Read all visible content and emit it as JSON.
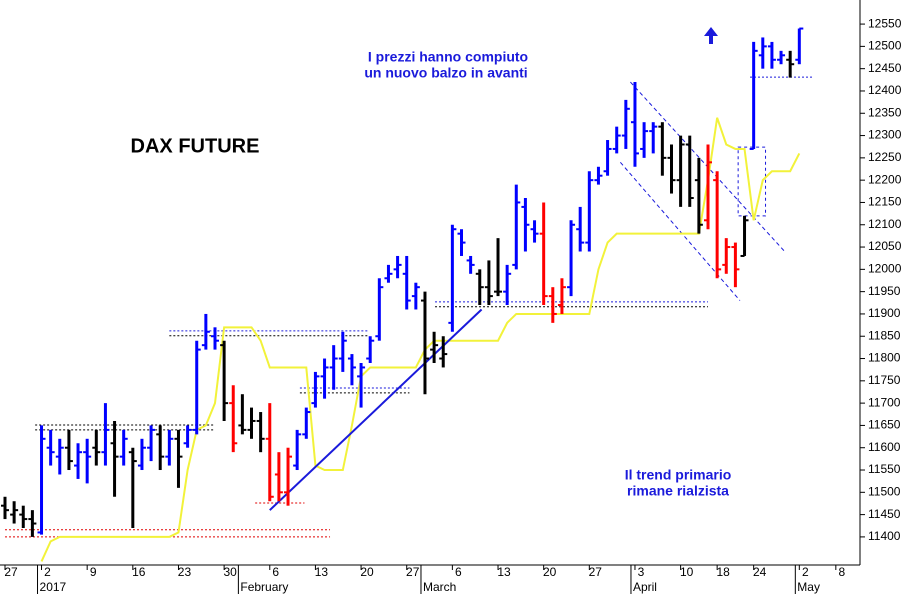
{
  "chart_data": {
    "type": "ohlc",
    "title": "DAX FUTURE",
    "annotations": [
      "I prezzi hanno compiuto",
      "un nuovo balzo in avanti",
      "Il trend primario",
      "rimane rialzista"
    ],
    "categories": [
      "27",
      null,
      null,
      null,
      "2",
      null,
      null,
      null,
      null,
      "9",
      null,
      null,
      null,
      null,
      "16",
      null,
      null,
      null,
      null,
      "23",
      null,
      null,
      null,
      null,
      "30",
      null,
      null,
      null,
      null,
      "6",
      null,
      null,
      null,
      null,
      "13",
      null,
      null,
      null,
      null,
      "20",
      null,
      null,
      null,
      null,
      "27",
      null,
      null,
      null,
      null,
      "6",
      null,
      null,
      null,
      null,
      "13",
      null,
      null,
      null,
      null,
      "20",
      null,
      null,
      null,
      null,
      "27",
      null,
      null,
      null,
      null,
      "3",
      null,
      null,
      null,
      null,
      "10",
      null,
      null,
      null,
      "18",
      null,
      null,
      null,
      "24",
      null,
      null,
      null,
      null,
      "2",
      null,
      null,
      null,
      "8"
    ],
    "months": [
      {
        "label": "2017",
        "at": 4
      },
      {
        "label": "February",
        "at": 26
      },
      {
        "label": "March",
        "at": 46
      },
      {
        "label": "April",
        "at": 69
      },
      {
        "label": "May",
        "at": 87
      }
    ],
    "open": [
      11470,
      11450,
      11450,
      11440,
      11410,
      11600,
      11580,
      11600,
      11560,
      11590,
      11600,
      11590,
      11610,
      11580,
      11590,
      11560,
      11600,
      11630,
      11580,
      11620,
      11610,
      11640,
      11830,
      11850,
      11830,
      11700,
      11650,
      11640,
      11660,
      11620,
      11540,
      11500,
      11560,
      11630,
      11700,
      11760,
      11780,
      11800,
      11800,
      11760,
      11800,
      11850,
      11980,
      12000,
      11990,
      11940,
      11930,
      11820,
      11800,
      11880,
      12080,
      12020,
      11990,
      11960,
      11950,
      11950,
      12010,
      12140,
      12090,
      12080,
      11940,
      11920,
      11960,
      12090,
      12060,
      12200,
      12220,
      12270,
      12300,
      12330,
      12270,
      12310,
      12320,
      12250,
      12200,
      12280,
      12200,
      12110,
      12200,
      12010,
      12050,
      12030,
      12270,
      12480,
      12500,
      12470,
      12470,
      12470,
      null,
      null,
      null,
      null
    ],
    "high": [
      11490,
      11480,
      11470,
      11460,
      11650,
      11640,
      11620,
      11640,
      11610,
      11620,
      11640,
      11700,
      11660,
      11640,
      11600,
      11620,
      11650,
      11650,
      11640,
      11640,
      11650,
      11840,
      11900,
      11870,
      11840,
      11740,
      11720,
      11690,
      11680,
      11700,
      11590,
      11600,
      11640,
      11690,
      11770,
      11800,
      11830,
      11860,
      11810,
      11790,
      11850,
      11980,
      12010,
      12030,
      12030,
      11970,
      11950,
      11860,
      11850,
      12100,
      12090,
      12030,
      12000,
      12020,
      12070,
      12010,
      12190,
      12160,
      12110,
      12150,
      11960,
      11980,
      12110,
      12140,
      12220,
      12230,
      12290,
      12320,
      12380,
      12420,
      12330,
      12330,
      12330,
      12280,
      12300,
      12300,
      12250,
      12280,
      12220,
      12070,
      12060,
      12120,
      12510,
      12520,
      12510,
      12490,
      12490,
      12540,
      null,
      null,
      null,
      null
    ],
    "low": [
      11440,
      11430,
      11420,
      11400,
      11405,
      11560,
      11540,
      11550,
      11530,
      11520,
      11560,
      11560,
      11490,
      11560,
      11420,
      11550,
      11570,
      11550,
      11560,
      11510,
      11600,
      11630,
      11820,
      11820,
      11660,
      11590,
      11630,
      11620,
      11590,
      11480,
      11480,
      11470,
      11550,
      11620,
      11690,
      11710,
      11730,
      11770,
      11740,
      11690,
      11790,
      11840,
      11970,
      11980,
      11910,
      11910,
      11720,
      11790,
      11780,
      11860,
      12030,
      11990,
      11920,
      11920,
      11940,
      11920,
      12000,
      12040,
      12060,
      11920,
      11880,
      11900,
      11940,
      12040,
      12040,
      12190,
      12210,
      12260,
      12270,
      12230,
      12250,
      12260,
      12210,
      12170,
      12140,
      12140,
      12080,
      12090,
      11980,
      11990,
      11960,
      12030,
      12270,
      12450,
      12450,
      12460,
      12430,
      12460,
      null,
      null,
      null,
      null
    ],
    "close": [
      11460,
      11460,
      11440,
      11430,
      11620,
      11590,
      11600,
      11570,
      11590,
      11580,
      11590,
      11640,
      11580,
      11620,
      11570,
      11600,
      11640,
      11580,
      11620,
      11580,
      11640,
      11820,
      11860,
      11840,
      11700,
      11610,
      11640,
      11660,
      11620,
      11490,
      11500,
      11580,
      11630,
      11680,
      11760,
      11780,
      11800,
      11840,
      11780,
      11780,
      11840,
      11960,
      11990,
      12010,
      11930,
      11960,
      11800,
      11830,
      11810,
      12090,
      12060,
      12010,
      11960,
      11940,
      11950,
      11990,
      12150,
      12100,
      12080,
      11940,
      11900,
      11960,
      12100,
      12060,
      12200,
      12210,
      12270,
      12300,
      12360,
      12260,
      12310,
      12320,
      12250,
      12200,
      12280,
      12160,
      12100,
      12240,
      12000,
      12050,
      12000,
      12110,
      12490,
      12500,
      12470,
      12480,
      12460,
      12540,
      null,
      null,
      null,
      null
    ],
    "colors": [
      "black",
      "black",
      "black",
      "black",
      "blue",
      "blue",
      "blue",
      "black",
      "blue",
      "blue",
      "black",
      "blue",
      "black",
      "blue",
      "black",
      "blue",
      "blue",
      "black",
      "blue",
      "black",
      "blue",
      "blue",
      "blue",
      "blue",
      "black",
      "red",
      "black",
      "black",
      "black",
      "red",
      "red",
      "red",
      "blue",
      "blue",
      "blue",
      "blue",
      "blue",
      "blue",
      "blue",
      "blue",
      "blue",
      "blue",
      "blue",
      "blue",
      "blue",
      "blue",
      "black",
      "black",
      "black",
      "blue",
      "blue",
      "blue",
      "black",
      "black",
      "black",
      "blue",
      "blue",
      "blue",
      "blue",
      "red",
      "red",
      "red",
      "blue",
      "blue",
      "blue",
      "blue",
      "blue",
      "blue",
      "blue",
      "blue",
      "blue",
      "blue",
      "black",
      "black",
      "black",
      "black",
      "black",
      "red",
      "red",
      "red",
      "red",
      "black",
      "blue",
      "blue",
      "blue",
      "blue",
      "black",
      "blue",
      null,
      null,
      null,
      null
    ],
    "line": {
      "color": "#f2f23a",
      "values": [
        null,
        null,
        null,
        null,
        11345,
        11390,
        11400,
        11400,
        11400,
        11400,
        11400,
        11400,
        11400,
        11400,
        11400,
        11400,
        11400,
        11400,
        11400,
        11410,
        11550,
        11640,
        11650,
        11700,
        11870,
        11870,
        11870,
        11870,
        11840,
        11780,
        11780,
        11780,
        11780,
        11780,
        11560,
        11550,
        11550,
        11550,
        11650,
        11760,
        11780,
        11780,
        11780,
        11780,
        11780,
        11780,
        11820,
        11840,
        11840,
        11840,
        11840,
        11840,
        11840,
        11840,
        11840,
        11880,
        11900,
        11900,
        11900,
        11900,
        11900,
        11900,
        11900,
        11900,
        11900,
        12000,
        12060,
        12080,
        12080,
        12080,
        12080,
        12080,
        12080,
        12080,
        12080,
        12080,
        12080,
        12200,
        12340,
        12280,
        12270,
        12270,
        12110,
        12200,
        12220,
        12220,
        12220,
        12260,
        null,
        null,
        null,
        null
      ]
    },
    "trendline": {
      "color": "#1a1adb",
      "from": 29,
      "to": 52.2,
      "start": 11460,
      "end": 11910
    },
    "channel": [
      {
        "from": 68.5,
        "to": 85.4,
        "start": 12420,
        "end": 12040
      },
      {
        "from": 67.4,
        "to": 80.5,
        "start": 12240,
        "end": 11930
      }
    ],
    "levels": [
      {
        "value": 11416,
        "from": 0,
        "to": 35.6,
        "color": "#e00000"
      },
      {
        "value": 11400,
        "from": 0,
        "to": 35.6,
        "color": "#e00000"
      },
      {
        "value": 11476,
        "from": 27.4,
        "to": 32.8,
        "color": "#e00000"
      },
      {
        "value": 11651,
        "from": 3.3,
        "to": 23,
        "color": "#000000"
      },
      {
        "value": 11640,
        "from": 3.3,
        "to": 23,
        "color": "#000000"
      },
      {
        "value": 11862,
        "from": 18,
        "to": 39.9,
        "color": "#1a1adb"
      },
      {
        "value": 11851,
        "from": 18,
        "to": 39.9,
        "color": "#000000"
      },
      {
        "value": 11734,
        "from": 32.3,
        "to": 44.3,
        "color": "#1a1adb"
      },
      {
        "value": 11723,
        "from": 32.3,
        "to": 44.3,
        "color": "#000000"
      },
      {
        "value": 11927,
        "from": 47.1,
        "to": 77,
        "color": "#1a1adb"
      },
      {
        "value": 11916,
        "from": 47.1,
        "to": 77,
        "color": "#000000"
      },
      {
        "value": 12431,
        "from": 81.6,
        "to": 88.4,
        "color": "#1a1adb"
      }
    ],
    "box": {
      "from": 80.3,
      "to": 83.3,
      "top": 12274,
      "bottom": 12120,
      "color": "#1a1adb"
    },
    "ylim": [
      11337,
      12604
    ],
    "yticks": [
      11400,
      11450,
      11500,
      11550,
      11600,
      11650,
      11700,
      11750,
      11800,
      11850,
      11900,
      11950,
      12000,
      12050,
      12100,
      12150,
      12200,
      12250,
      12300,
      12350,
      12400,
      12450,
      12500,
      12550
    ]
  }
}
